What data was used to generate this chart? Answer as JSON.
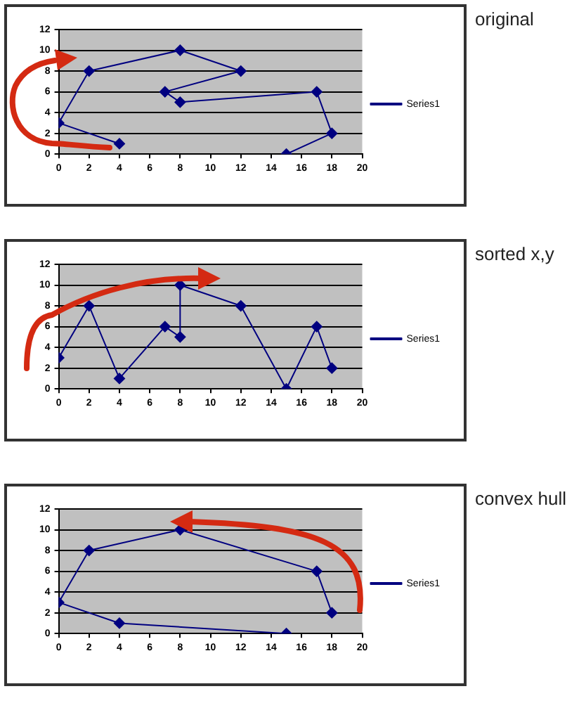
{
  "chart_data": [
    {
      "type": "line",
      "annotations": [
        "original"
      ],
      "xlim": [
        0,
        20
      ],
      "xticks": [
        0,
        2,
        4,
        6,
        8,
        10,
        12,
        14,
        16,
        18,
        20
      ],
      "ylim": [
        0,
        12
      ],
      "yticks": [
        0,
        2,
        4,
        6,
        8,
        10,
        12
      ],
      "grid": "y",
      "legend": "right",
      "marker": "diamond",
      "line_style": "solid",
      "series": [
        {
          "name": "Series1",
          "color": "#000080",
          "x": [
            4,
            0,
            2,
            8,
            12,
            7,
            8,
            17,
            18,
            15
          ],
          "values": [
            1,
            3,
            8,
            10,
            8,
            6,
            5,
            6,
            2,
            0
          ]
        }
      ]
    },
    {
      "type": "line",
      "annotations": [
        "sorted x,y"
      ],
      "xlim": [
        0,
        20
      ],
      "xticks": [
        0,
        2,
        4,
        6,
        8,
        10,
        12,
        14,
        16,
        18,
        20
      ],
      "ylim": [
        0,
        12
      ],
      "yticks": [
        0,
        2,
        4,
        6,
        8,
        10,
        12
      ],
      "grid": "y",
      "legend": "right",
      "marker": "diamond",
      "line_style": "solid",
      "series": [
        {
          "name": "Series1",
          "color": "#000080",
          "x": [
            0,
            2,
            4,
            7,
            8,
            8,
            12,
            15,
            17,
            18
          ],
          "values": [
            3,
            8,
            1,
            6,
            5,
            10,
            8,
            0,
            6,
            2
          ]
        }
      ]
    },
    {
      "type": "line",
      "annotations": [
        "convex hull"
      ],
      "xlim": [
        0,
        20
      ],
      "xticks": [
        0,
        2,
        4,
        6,
        8,
        10,
        12,
        14,
        16,
        18,
        20
      ],
      "ylim": [
        0,
        12
      ],
      "yticks": [
        0,
        2,
        4,
        6,
        8,
        10,
        12
      ],
      "grid": "y",
      "legend": "right",
      "marker": "diamond",
      "line_style": "solid",
      "series": [
        {
          "name": "Series1",
          "color": "#000080",
          "x": [
            18,
            17,
            8,
            2,
            0,
            4,
            15
          ],
          "values": [
            2,
            6,
            10,
            8,
            3,
            1,
            0
          ]
        }
      ]
    }
  ]
}
